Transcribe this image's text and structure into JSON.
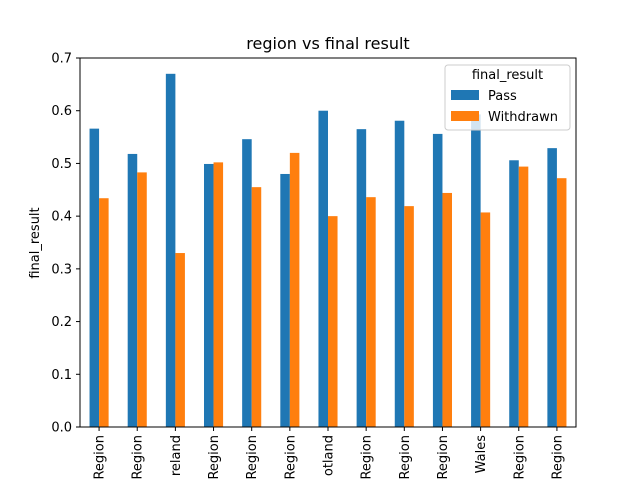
{
  "chart_data": {
    "type": "bar",
    "title": "region vs final result",
    "xlabel": "",
    "ylabel": "final_result",
    "ylim": [
      0,
      0.7
    ],
    "yticks": [
      "0.0",
      "0.1",
      "0.2",
      "0.3",
      "0.4",
      "0.5",
      "0.6",
      "0.7"
    ],
    "categories": [
      "Region",
      "Region",
      "reland",
      "Region",
      "Region",
      "Region",
      "otland",
      "Region",
      "Region",
      "Region",
      "Wales",
      "Region",
      "Region"
    ],
    "series": [
      {
        "name": "Pass",
        "color": "#1f77b4",
        "values": [
          0.566,
          0.518,
          0.67,
          0.499,
          0.546,
          0.48,
          0.6,
          0.565,
          0.581,
          0.556,
          0.593,
          0.506,
          0.529
        ]
      },
      {
        "name": "Withdrawn",
        "color": "#ff7f0e",
        "values": [
          0.434,
          0.483,
          0.33,
          0.502,
          0.455,
          0.52,
          0.4,
          0.436,
          0.419,
          0.444,
          0.407,
          0.494,
          0.472
        ]
      }
    ],
    "legend": {
      "title": "final_result",
      "placement": "top-right"
    },
    "grid": false
  }
}
